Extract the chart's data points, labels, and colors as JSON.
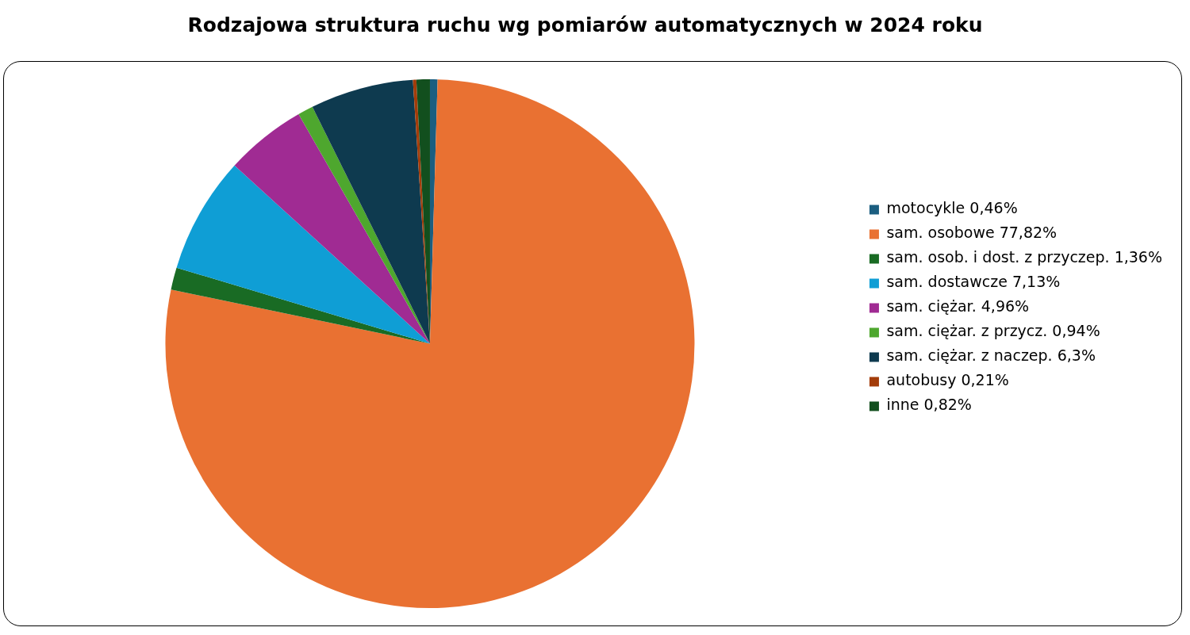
{
  "chart_data": {
    "type": "pie",
    "title": "Rodzajowa struktura ruchu wg pomiarów automatycznych w 2024 roku",
    "categories": [
      "motocykle 0,46%",
      "sam. osobowe 77,82%",
      "sam. osob. i dost. z przyczep. 1,36%",
      "sam. dostawcze 7,13%",
      "sam. ciężar. 4,96%",
      "sam. ciężar. z przycz. 0,94%",
      "sam. ciężar. z naczep. 6,3%",
      "autobusy 0,21%",
      "inne 0,82%"
    ],
    "values": [
      0.46,
      77.82,
      1.36,
      7.13,
      4.96,
      0.94,
      6.3,
      0.21,
      0.82
    ],
    "colors": [
      "#1b5e80",
      "#e97132",
      "#196b24",
      "#0f9ed5",
      "#a02b93",
      "#4ea72e",
      "#0e3a4f",
      "#a33c0a",
      "#124f1e"
    ],
    "legend": "right"
  }
}
